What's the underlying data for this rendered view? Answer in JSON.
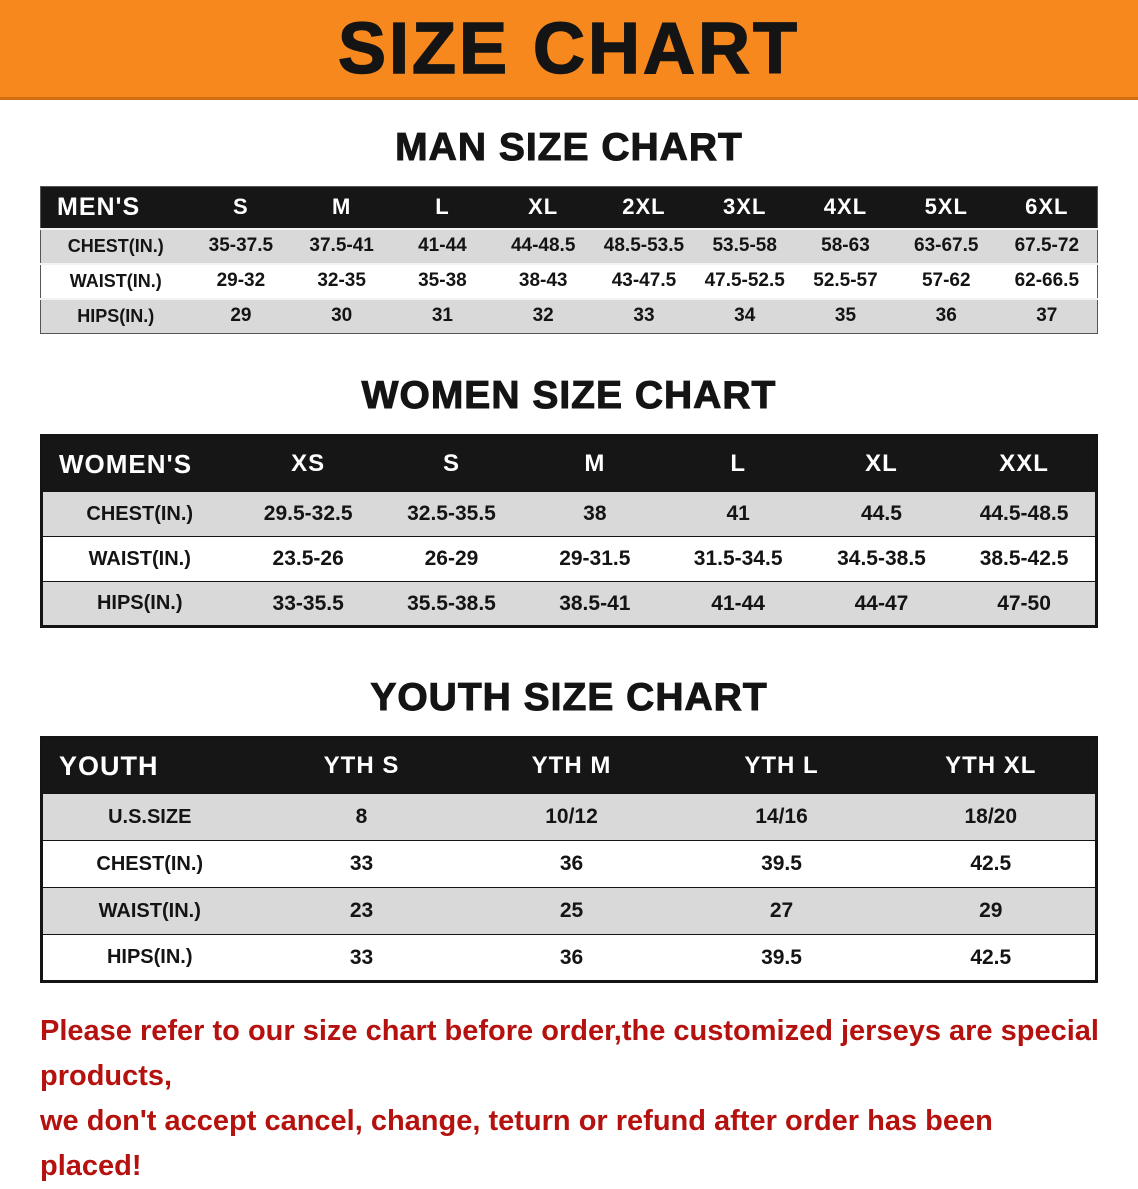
{
  "banner": {
    "title": "SIZE CHART"
  },
  "man": {
    "heading": "MAN SIZE CHART",
    "label": "MEN'S",
    "sizes": [
      "S",
      "M",
      "L",
      "XL",
      "2XL",
      "3XL",
      "4XL",
      "5XL",
      "6XL"
    ],
    "rows": [
      {
        "label": "CHEST(IN.)",
        "values": [
          "35-37.5",
          "37.5-41",
          "41-44",
          "44-48.5",
          "48.5-53.5",
          "53.5-58",
          "58-63",
          "63-67.5",
          "67.5-72"
        ]
      },
      {
        "label": "WAIST(IN.)",
        "values": [
          "29-32",
          "32-35",
          "35-38",
          "38-43",
          "43-47.5",
          "47.5-52.5",
          "52.5-57",
          "57-62",
          "62-66.5"
        ]
      },
      {
        "label": "HIPS(IN.)",
        "values": [
          "29",
          "30",
          "31",
          "32",
          "33",
          "34",
          "35",
          "36",
          "37"
        ]
      }
    ]
  },
  "women": {
    "heading": "WOMEN SIZE CHART",
    "label": "WOMEN'S",
    "sizes": [
      "XS",
      "S",
      "M",
      "L",
      "XL",
      "XXL"
    ],
    "rows": [
      {
        "label": "CHEST(IN.)",
        "values": [
          "29.5-32.5",
          "32.5-35.5",
          "38",
          "41",
          "44.5",
          "44.5-48.5"
        ]
      },
      {
        "label": "WAIST(IN.)",
        "values": [
          "23.5-26",
          "26-29",
          "29-31.5",
          "31.5-34.5",
          "34.5-38.5",
          "38.5-42.5"
        ]
      },
      {
        "label": "HIPS(IN.)",
        "values": [
          "33-35.5",
          "35.5-38.5",
          "38.5-41",
          "41-44",
          "44-47",
          "47-50"
        ]
      }
    ]
  },
  "youth": {
    "heading": "YOUTH SIZE CHART",
    "label": "YOUTH",
    "sizes": [
      "YTH S",
      "YTH M",
      "YTH L",
      "YTH XL"
    ],
    "rows": [
      {
        "label": "U.S.SIZE",
        "values": [
          "8",
          "10/12",
          "14/16",
          "18/20"
        ]
      },
      {
        "label": "CHEST(IN.)",
        "values": [
          "33",
          "36",
          "39.5",
          "42.5"
        ]
      },
      {
        "label": "WAIST(IN.)",
        "values": [
          "23",
          "25",
          "27",
          "29"
        ]
      },
      {
        "label": "HIPS(IN.)",
        "values": [
          "33",
          "36",
          "39.5",
          "42.5"
        ]
      }
    ]
  },
  "disclaimer": {
    "line1": "Please refer to our size chart before order,the customized jerseys are special products,",
    "line2": "we don't accept cancel, change, teturn or refund after order has been placed!"
  },
  "colors": {
    "banner_orange": "#f6881d",
    "header_black": "#161616",
    "row_gray": "#d9d9d9",
    "disclaimer_red": "#b5120f"
  }
}
